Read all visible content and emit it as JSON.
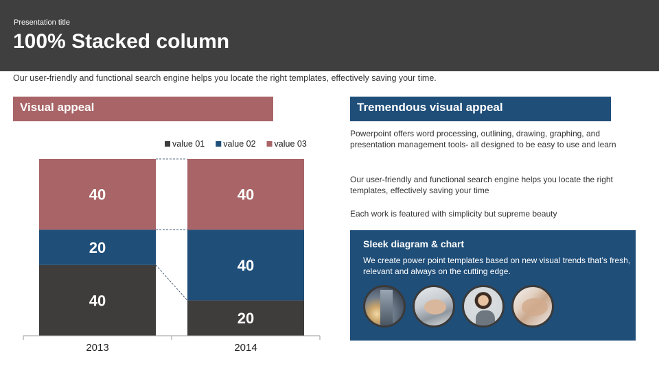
{
  "header": {
    "presentation_title": "Presentation title",
    "title": "100% Stacked column"
  },
  "subtitle": "Our user-friendly and functional search engine helps you locate the right templates, effectively saving your time.",
  "left_section": {
    "heading": "Visual appeal"
  },
  "right_section": {
    "heading": "Tremendous visual appeal",
    "paragraphs": [
      "Powerpoint offers word processing, outlining, drawing, graphing, and presentation management tools- all designed to be easy to use and learn",
      "Our user-friendly and functional search engine helps you locate the right templates, effectively saving your time",
      "Each work is featured with simplicity but supreme beauty"
    ],
    "card": {
      "title": "Sleek diagram & chart",
      "text": "We create power point templates based on new visual trends that’s fresh, relevant and always on the cutting edge.",
      "photos": [
        "skyscrapers-photo",
        "meeting-photo",
        "woman-phone-photo",
        "team-hands-photo"
      ]
    }
  },
  "colors": {
    "header_bg": "#3f3f3f",
    "value01": "#3f3c3c",
    "value02": "#1f4e79",
    "value03": "#a86466"
  },
  "chart_data": {
    "type": "bar",
    "stacking": "percent",
    "categories": [
      "2013",
      "2014"
    ],
    "series": [
      {
        "name": "value 01",
        "values": [
          40,
          20
        ],
        "color": "#3f3c3c"
      },
      {
        "name": "value 02",
        "values": [
          20,
          40
        ],
        "color": "#1f4e79"
      },
      {
        "name": "value 03",
        "values": [
          40,
          40
        ],
        "color": "#a86466"
      }
    ],
    "ylim": [
      0,
      100
    ],
    "legend": "top-right",
    "grid": false,
    "data_labels": true,
    "series_lines": true
  }
}
